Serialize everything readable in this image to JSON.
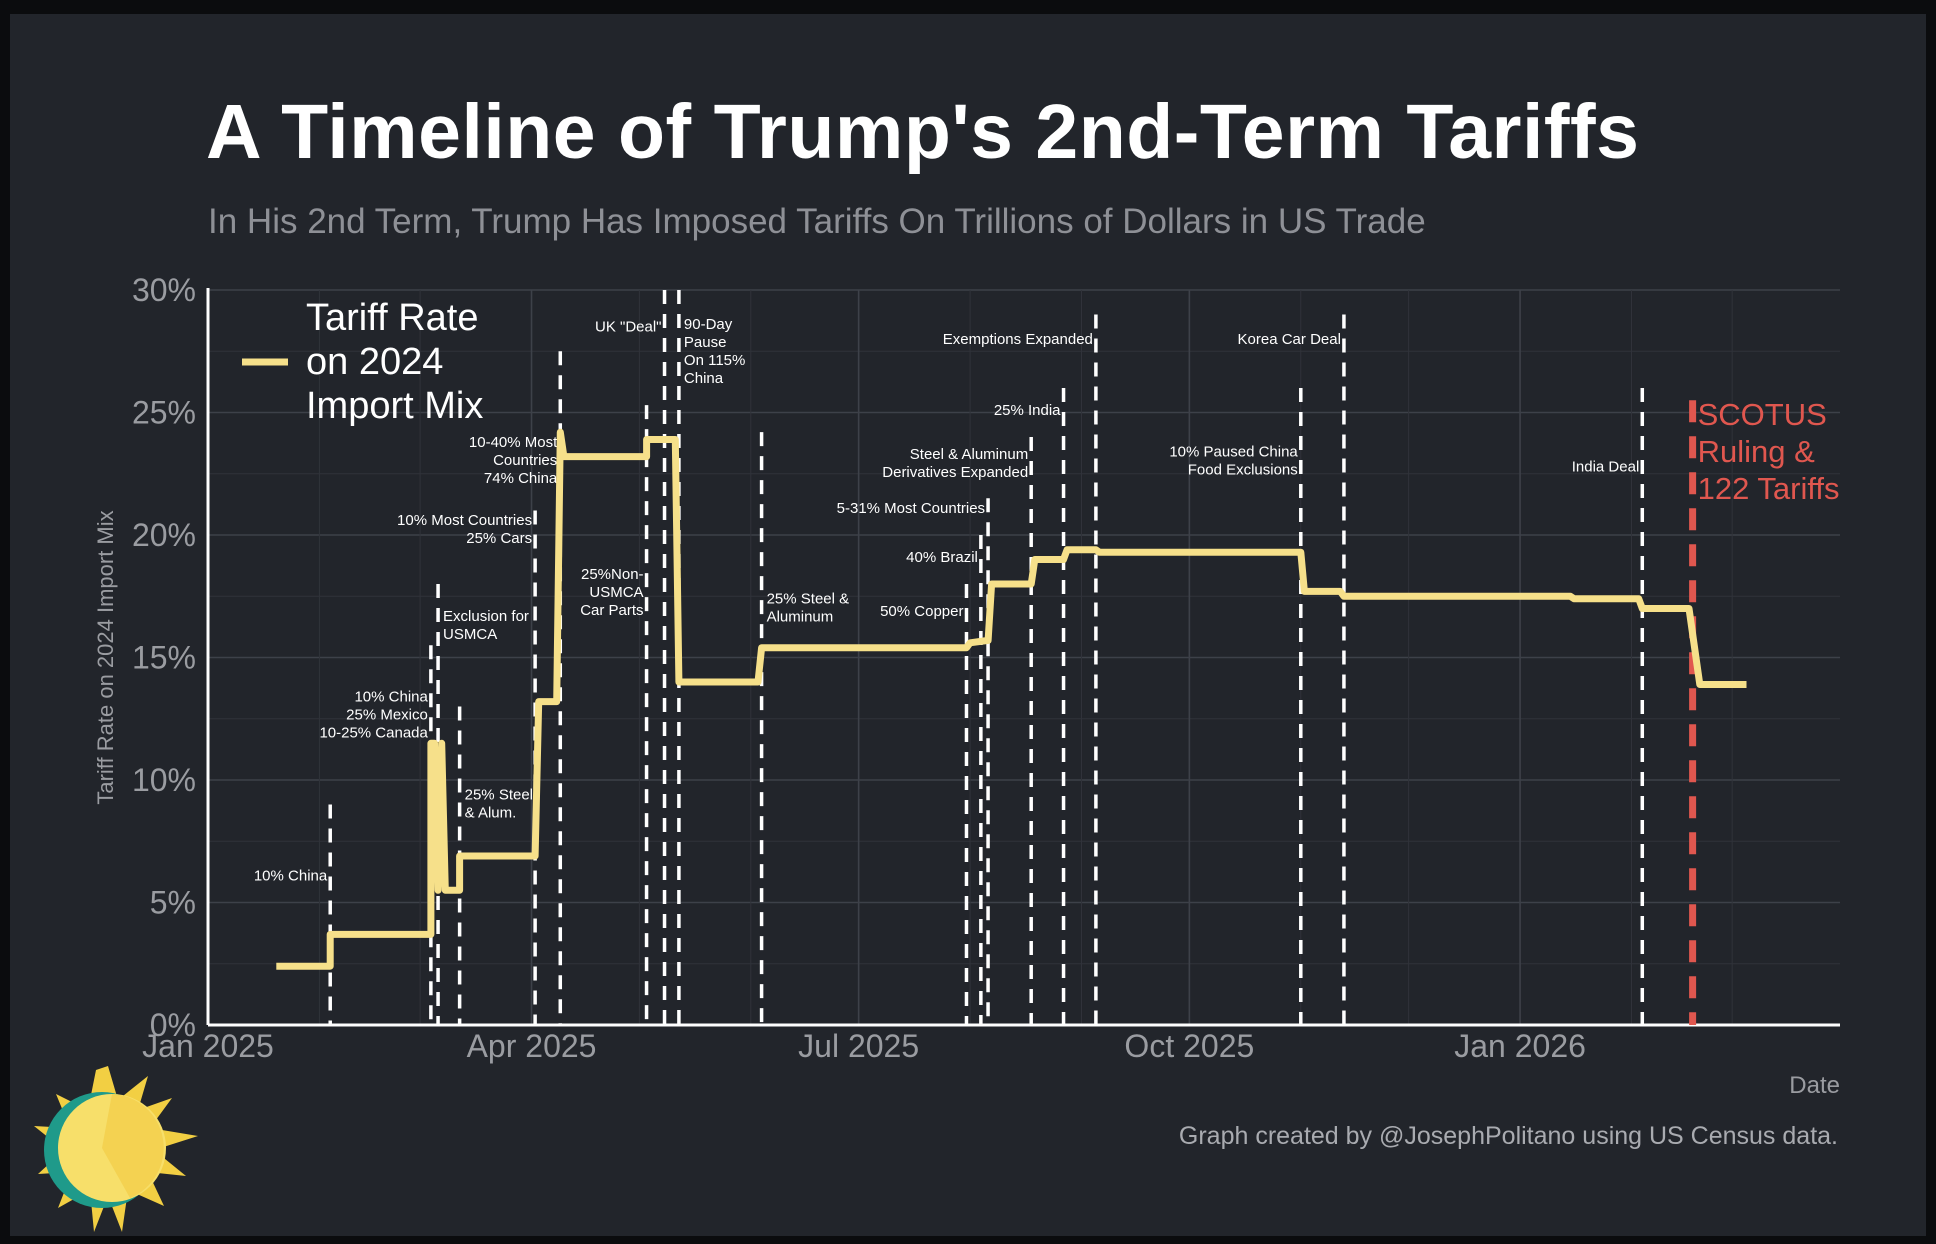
{
  "title": "A Timeline of Trump's 2nd-Term Tariffs",
  "subtitle": "In His 2nd Term, Trump Has Imposed Tariffs On Trillions of Dollars in US Trade",
  "credit": "Graph created by @JosephPolitano using US Census data.",
  "colors": {
    "background": "#22252b",
    "line": "#f6e08a",
    "event_line": "#ffffff",
    "scotus": "#e0574f",
    "grid": "#3a3e46",
    "axis_text": "#9a9ca1"
  },
  "chart_data": {
    "type": "line",
    "xlabel": "Date",
    "ylabel": "Tariff Rate on 2024 Import Mix",
    "xlim": [
      "2025-01-01",
      "2026-03-31"
    ],
    "ylim": [
      0,
      30
    ],
    "y_ticks": [
      0,
      5,
      10,
      15,
      20,
      25,
      30
    ],
    "y_tick_labels": [
      "0%",
      "5%",
      "10%",
      "15%",
      "20%",
      "25%",
      "30%"
    ],
    "x_ticks": [
      {
        "date": "2025-01-01",
        "label": "Jan 2025"
      },
      {
        "date": "2025-04-01",
        "label": "Apr 2025"
      },
      {
        "date": "2025-07-01",
        "label": "Jul 2025"
      },
      {
        "date": "2025-10-01",
        "label": "Oct 2025"
      },
      {
        "date": "2026-01-01",
        "label": "Jan 2026"
      }
    ],
    "legend": {
      "label_lines": [
        "Tariff Rate",
        "on 2024",
        "Import Mix"
      ],
      "position": "top-left"
    },
    "series": [
      {
        "name": "Tariff Rate on 2024 Import Mix",
        "points": [
          [
            "2025-01-20",
            2.4
          ],
          [
            "2025-02-04",
            2.4
          ],
          [
            "2025-02-04",
            3.7
          ],
          [
            "2025-03-04",
            3.7
          ],
          [
            "2025-03-04",
            11.5
          ],
          [
            "2025-03-05",
            11.5
          ],
          [
            "2025-03-06",
            5.5
          ],
          [
            "2025-03-07",
            11.5
          ],
          [
            "2025-03-08",
            5.5
          ],
          [
            "2025-03-12",
            5.5
          ],
          [
            "2025-03-12",
            6.9
          ],
          [
            "2025-04-02",
            6.9
          ],
          [
            "2025-04-03",
            13.2
          ],
          [
            "2025-04-08",
            13.2
          ],
          [
            "2025-04-09",
            24.2
          ],
          [
            "2025-04-10",
            23.2
          ],
          [
            "2025-05-03",
            23.2
          ],
          [
            "2025-05-03",
            23.9
          ],
          [
            "2025-05-11",
            23.9
          ],
          [
            "2025-05-12",
            14.0
          ],
          [
            "2025-06-03",
            14.0
          ],
          [
            "2025-06-04",
            15.4
          ],
          [
            "2025-07-31",
            15.4
          ],
          [
            "2025-08-01",
            15.6
          ],
          [
            "2025-08-06",
            15.7
          ],
          [
            "2025-08-07",
            18.0
          ],
          [
            "2025-08-18",
            18.0
          ],
          [
            "2025-08-19",
            19.0
          ],
          [
            "2025-08-27",
            19.0
          ],
          [
            "2025-08-28",
            19.4
          ],
          [
            "2025-09-05",
            19.4
          ],
          [
            "2025-09-06",
            19.3
          ],
          [
            "2025-11-01",
            19.3
          ],
          [
            "2025-11-02",
            17.7
          ],
          [
            "2025-11-12",
            17.7
          ],
          [
            "2025-11-13",
            17.5
          ],
          [
            "2026-01-15",
            17.5
          ],
          [
            "2026-01-16",
            17.4
          ],
          [
            "2026-02-03",
            17.4
          ],
          [
            "2026-02-04",
            17.0
          ],
          [
            "2026-02-17",
            17.0
          ],
          [
            "2026-02-20",
            13.9
          ],
          [
            "2026-03-05",
            13.9
          ]
        ]
      }
    ],
    "events": [
      {
        "date": "2025-02-04",
        "label_lines": [
          "10% China"
        ],
        "align": "end",
        "label_y": 5.9,
        "top": 9
      },
      {
        "date": "2025-03-04",
        "label_lines": [
          "10% China",
          "25% Mexico",
          "10-25% Canada"
        ],
        "align": "end",
        "label_y": 13.2,
        "top": 15.5
      },
      {
        "date": "2025-03-06",
        "label_lines": [
          "Exclusion for",
          "USMCA"
        ],
        "align": "start",
        "label_y": 16.5,
        "top": 18
      },
      {
        "date": "2025-03-12",
        "label_lines": [
          "25% Steel",
          "& Alum."
        ],
        "align": "start",
        "label_y": 9.2,
        "top": 13
      },
      {
        "date": "2025-04-02",
        "label_lines": [
          "10% Most Countries",
          "25% Cars"
        ],
        "align": "end",
        "label_y": 20.4,
        "top": 21
      },
      {
        "date": "2025-04-09",
        "label_lines": [
          "10-40% Most",
          "Countries",
          "74% China"
        ],
        "align": "end",
        "label_y": 23.6,
        "top": 27.5
      },
      {
        "date": "2025-05-03",
        "label_lines": [
          "25%Non-",
          "USMCA",
          "Car Parts"
        ],
        "align": "end",
        "label_y": 18.2,
        "top": 25.3
      },
      {
        "date": "2025-05-08",
        "label_lines": [
          "UK \"Deal\""
        ],
        "align": "end",
        "label_y": 28.3,
        "top": 30
      },
      {
        "date": "2025-05-12",
        "label_lines": [
          "90-Day",
          "Pause",
          "On 115%",
          "China"
        ],
        "align": "start",
        "label_y": 28.4,
        "top": 30
      },
      {
        "date": "2025-06-04",
        "label_lines": [
          "25% Steel &",
          "Aluminum"
        ],
        "align": "start",
        "label_y": 17.2,
        "top": 24.2
      },
      {
        "date": "2025-07-31",
        "label_lines": [
          "50% Copper"
        ],
        "align": "end",
        "label_y": 16.7,
        "top": 18
      },
      {
        "date": "2025-08-04",
        "label_lines": [
          "40% Brazil"
        ],
        "align": "end",
        "label_y": 18.9,
        "top": 20
      },
      {
        "date": "2025-08-06",
        "label_lines": [
          "5-31% Most Countries"
        ],
        "align": "end",
        "label_y": 20.9,
        "top": 21.5
      },
      {
        "date": "2025-08-18",
        "label_lines": [
          "Steel & Aluminum",
          "Derivatives Expanded"
        ],
        "align": "end",
        "label_y": 23.1,
        "top": 24
      },
      {
        "date": "2025-08-27",
        "label_lines": [
          "25% India"
        ],
        "align": "end",
        "label_y": 24.9,
        "top": 26
      },
      {
        "date": "2025-09-05",
        "label_lines": [
          "Exemptions Expanded"
        ],
        "align": "end",
        "label_y": 27.8,
        "top": 29
      },
      {
        "date": "2025-11-01",
        "label_lines": [
          "10% Paused China",
          "Food Exclusions"
        ],
        "align": "end",
        "label_y": 23.2,
        "top": 26
      },
      {
        "date": "2025-11-13",
        "label_lines": [
          "Korea Car Deal"
        ],
        "align": "end",
        "label_y": 27.8,
        "top": 29
      },
      {
        "date": "2026-02-04",
        "label_lines": [
          "India Deal"
        ],
        "align": "end",
        "label_y": 22.6,
        "top": 26
      },
      {
        "date": "2026-02-18",
        "label_lines": [
          "SCOTUS",
          "Ruling &",
          "122 Tariffs"
        ],
        "align": "start",
        "label_y": 24.5,
        "top": 25.5,
        "highlight": true
      }
    ]
  }
}
